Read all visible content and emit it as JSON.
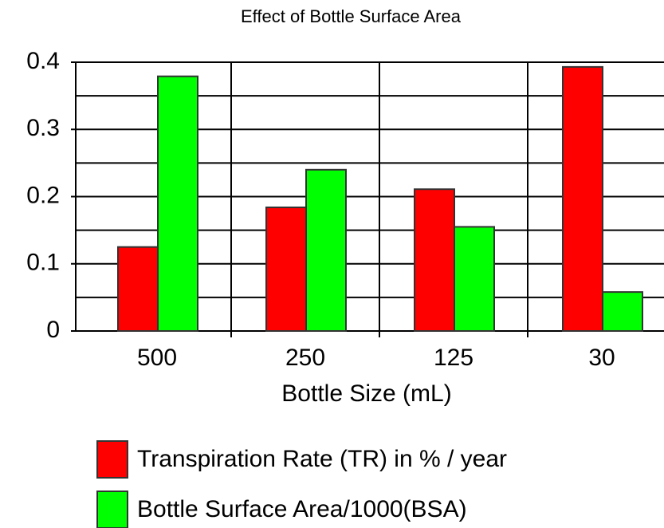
{
  "chart_data": {
    "type": "bar",
    "title": "Effect of Bottle Surface Area",
    "x_label": "Bottle Size (mL)",
    "categories": [
      "500",
      "250",
      "125",
      "30"
    ],
    "series": [
      {
        "name": "Transpiration Rate (TR) in % / year",
        "color": "#ff0000",
        "values": [
          0.125,
          0.184,
          0.211,
          0.393
        ]
      },
      {
        "name": "Bottle Surface Area/1000(BSA)",
        "color": "#00ff00",
        "values": [
          0.379,
          0.24,
          0.155,
          0.058
        ]
      }
    ],
    "ylim": [
      0,
      0.4
    ],
    "yticks": [
      0,
      0.1,
      0.2,
      0.3,
      0.4
    ],
    "minor_yticks": [
      0.05,
      0.15,
      0.25,
      0.35
    ],
    "grid": true,
    "legend": "bottom"
  }
}
